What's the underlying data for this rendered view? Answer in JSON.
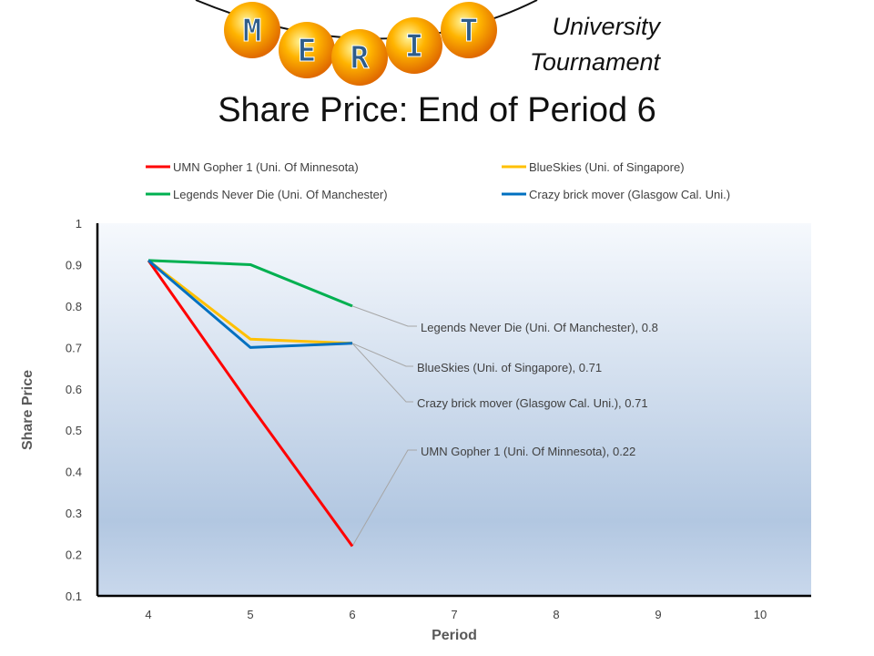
{
  "brand": {
    "logo_letters": [
      "M",
      "E",
      "R",
      "I",
      "T"
    ],
    "line1": "University",
    "line2": "Tournament"
  },
  "chart_data": {
    "type": "line",
    "title": "Share Price: End of Period 6",
    "xlabel": "Period",
    "ylabel": "Share Price",
    "x_ticks": [
      4,
      5,
      6,
      7,
      8,
      9,
      10
    ],
    "y_ticks": [
      "0.1",
      "0.2",
      "0.3",
      "0.4",
      "0.5",
      "0.6",
      "0.7",
      "0.8",
      "0.9",
      "1"
    ],
    "xlim": [
      3.5,
      10.5
    ],
    "ylim": [
      0.1,
      1.0
    ],
    "legend_position": "top",
    "series": [
      {
        "name": "UMN Gopher 1 (Uni. Of Minnesota)",
        "color": "#ff0000",
        "x": [
          4,
          5,
          6
        ],
        "values": [
          0.91,
          0.56,
          0.22
        ],
        "end_label": "UMN Gopher 1 (Uni. Of Minnesota), 0.22"
      },
      {
        "name": "BlueSkies (Uni. of Singapore)",
        "color": "#ffc000",
        "x": [
          4,
          5,
          6
        ],
        "values": [
          0.91,
          0.72,
          0.71
        ],
        "end_label": "BlueSkies (Uni. of Singapore), 0.71"
      },
      {
        "name": "Legends Never Die (Uni. Of Manchester)",
        "color": "#00b050",
        "x": [
          4,
          5,
          6
        ],
        "values": [
          0.91,
          0.9,
          0.8
        ],
        "end_label": "Legends Never Die (Uni. Of Manchester), 0.8"
      },
      {
        "name": "Crazy brick mover  (Glasgow Cal. Uni.)",
        "color": "#0070c0",
        "x": [
          4,
          5,
          6
        ],
        "values": [
          0.91,
          0.7,
          0.71
        ],
        "end_label": "Crazy brick mover  (Glasgow Cal. Uni.), 0.71"
      }
    ],
    "legend_order": [
      0,
      1,
      2,
      3
    ]
  }
}
